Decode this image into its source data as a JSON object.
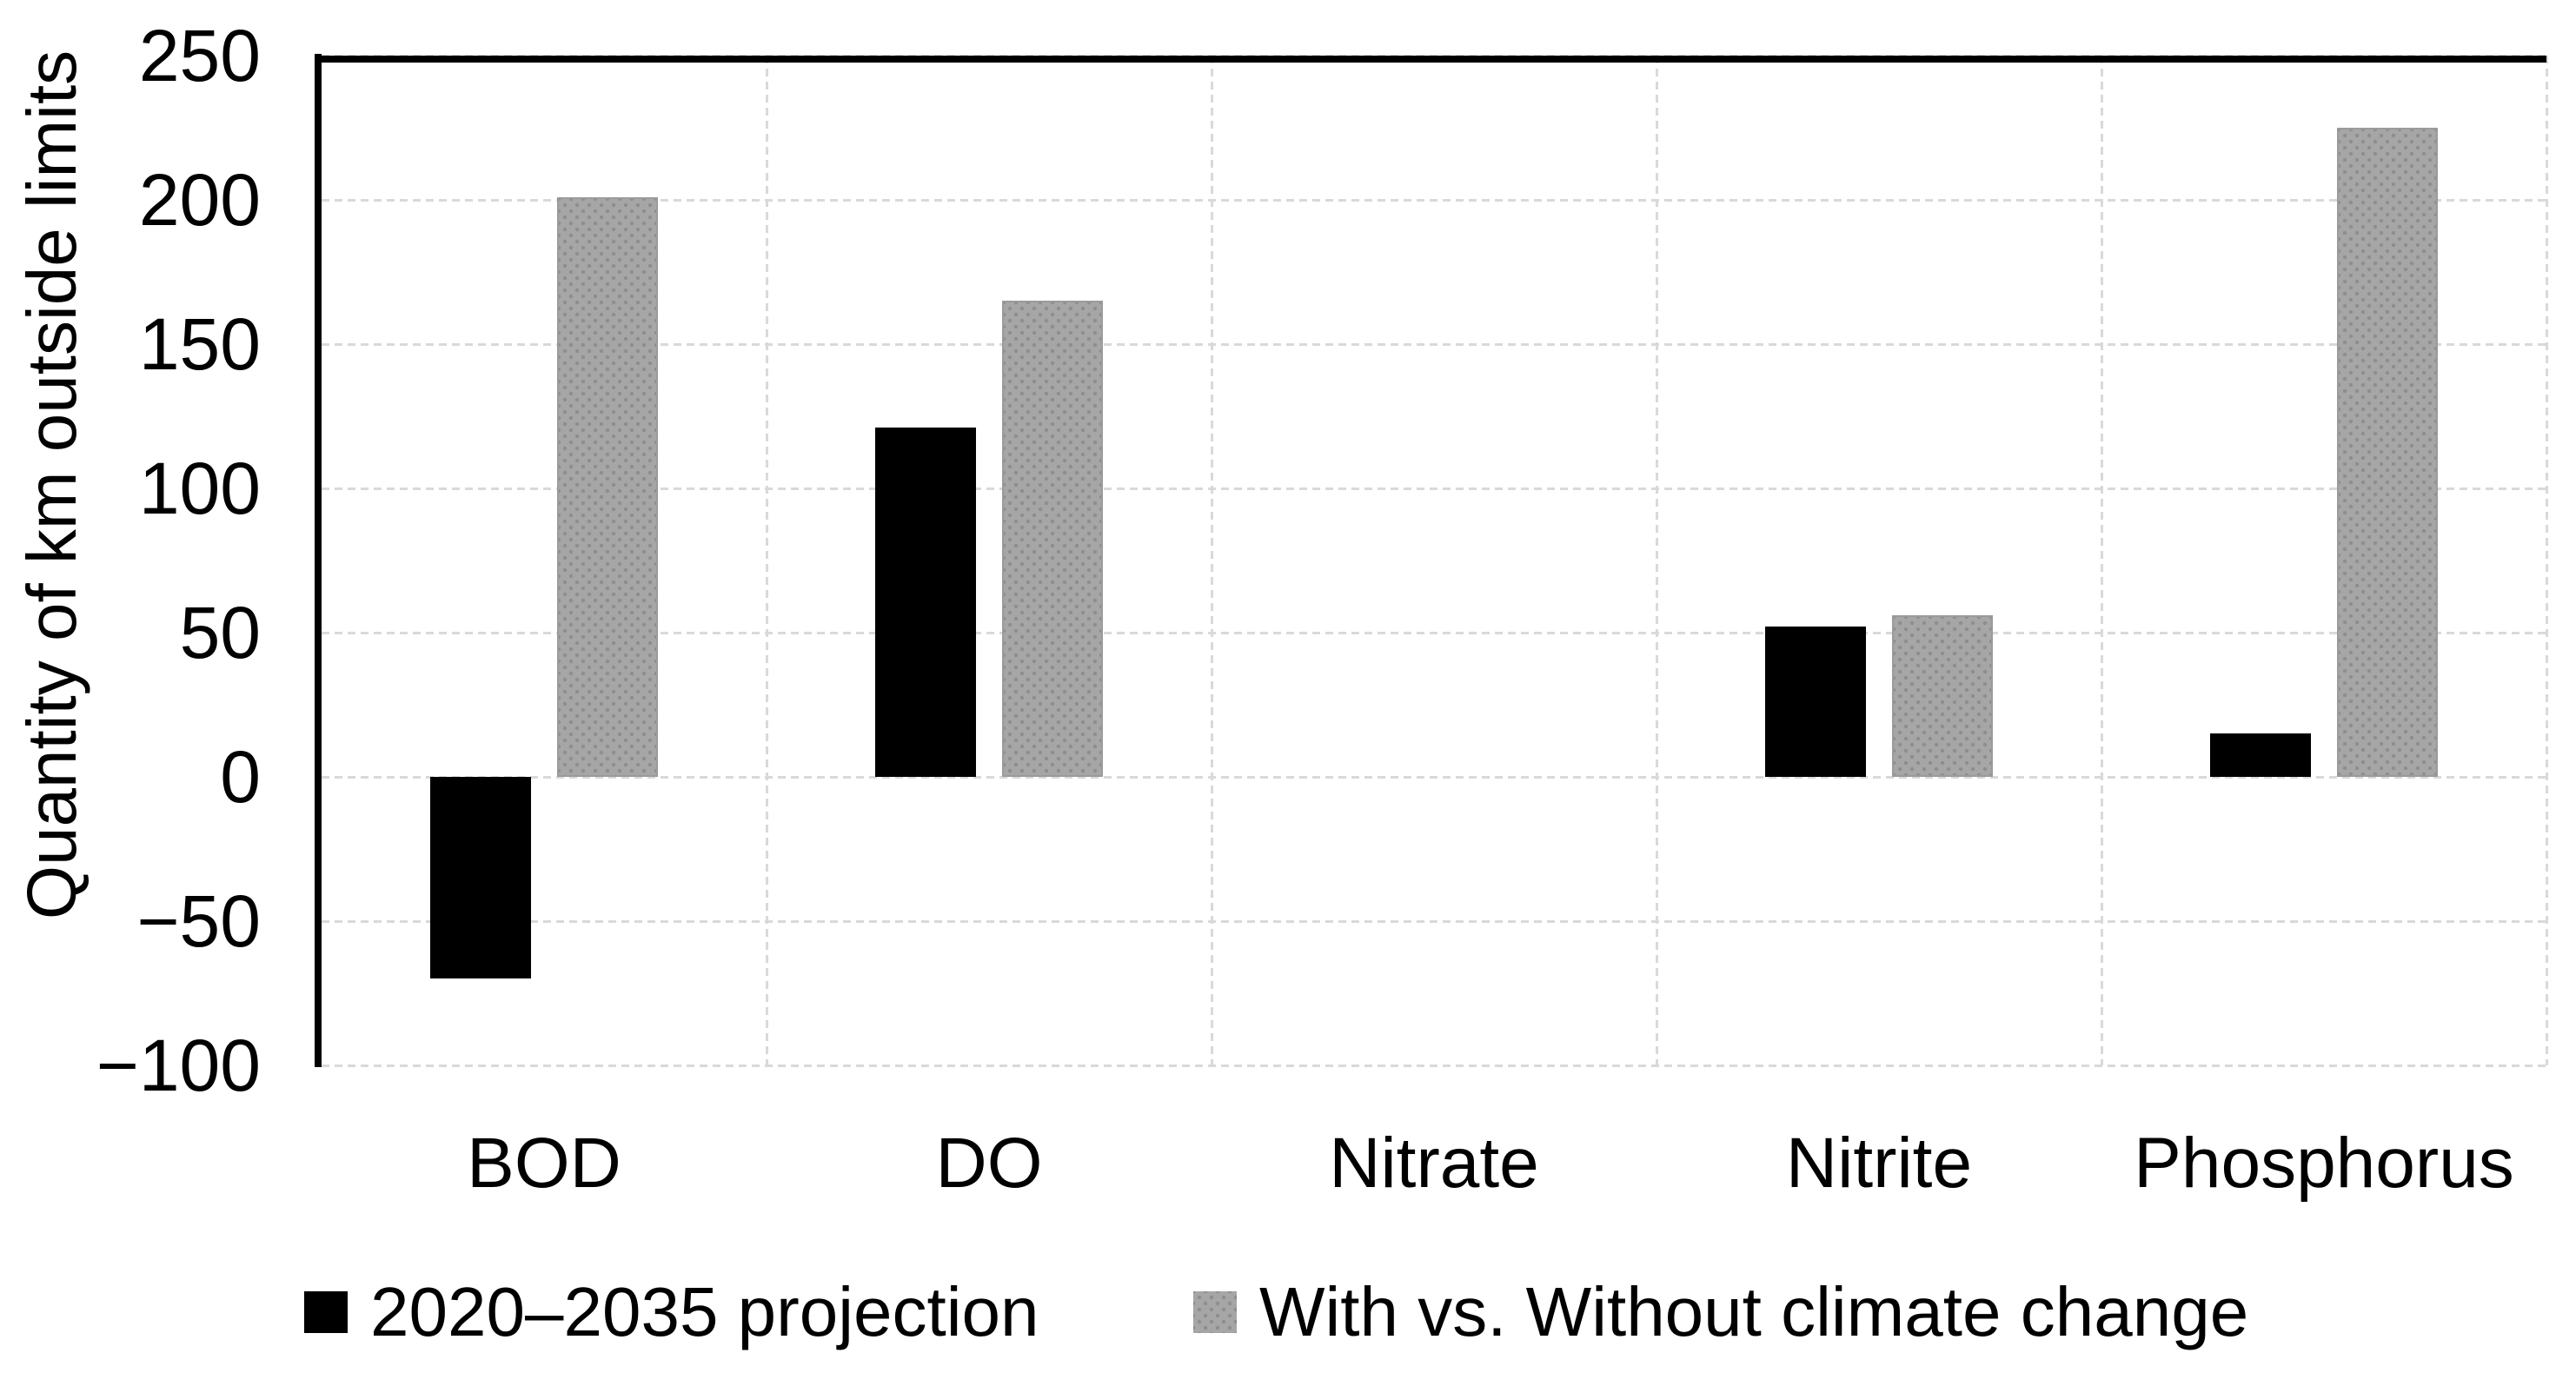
{
  "chart_data": {
    "type": "bar",
    "title": "",
    "xlabel": "",
    "ylabel": "Quantity of km outside limits",
    "categories": [
      "BOD",
      "DO",
      "Nitrate",
      "Nitrite",
      "Phosphorus"
    ],
    "series": [
      {
        "name": "2020–2035 projection",
        "color": "#000000",
        "pattern": "solid",
        "values": [
          -70,
          121,
          0,
          52,
          15
        ]
      },
      {
        "name": "With vs. Without climate change",
        "color": "#a6a6a6",
        "pattern": "dots",
        "values": [
          201,
          165,
          0,
          56,
          225
        ]
      }
    ],
    "ylim": [
      -100,
      250
    ],
    "ytick_step": 50,
    "ytick_labels": [
      "250",
      "200",
      "150",
      "100",
      "50",
      "0",
      "−50",
      "−100"
    ],
    "grid": true,
    "gridline_color": "#d9d9d9",
    "axis_color": "#000000",
    "legend_position": "bottom"
  }
}
